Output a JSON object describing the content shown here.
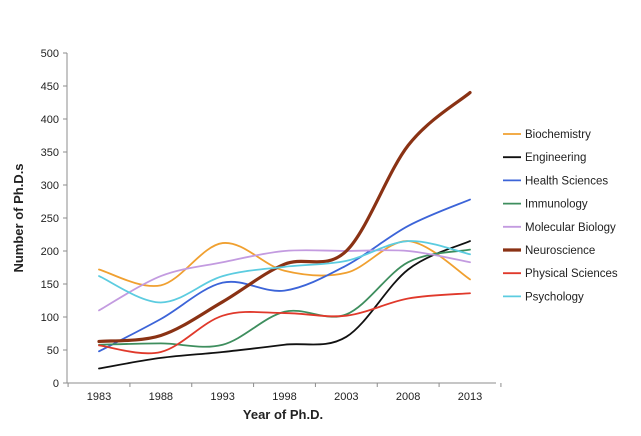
{
  "chart_data": {
    "type": "line",
    "title": "",
    "xlabel": "Year of Ph.D.",
    "ylabel": "Number of Ph.D.s",
    "x": [
      1983,
      1988,
      1993,
      1998,
      2003,
      2008,
      2013
    ],
    "ylim": [
      0,
      500
    ],
    "yticks": [
      0,
      50,
      100,
      150,
      200,
      250,
      300,
      350,
      400,
      450,
      500
    ],
    "grid": false,
    "legend_position": "right",
    "series": [
      {
        "name": "Biochemistry",
        "color": "#F0A030",
        "values": [
          172,
          148,
          212,
          170,
          167,
          215,
          157
        ]
      },
      {
        "name": "Engineering",
        "color": "#111111",
        "values": [
          22,
          38,
          47,
          58,
          70,
          172,
          215
        ]
      },
      {
        "name": "Health Sciences",
        "color": "#3C64D8",
        "values": [
          48,
          97,
          152,
          140,
          178,
          238,
          278
        ]
      },
      {
        "name": "Immunology",
        "color": "#3E8E5E",
        "values": [
          58,
          60,
          58,
          108,
          104,
          183,
          202
        ]
      },
      {
        "name": "Molecular Biology",
        "color": "#C39BE0",
        "values": [
          110,
          162,
          183,
          200,
          200,
          200,
          183
        ]
      },
      {
        "name": "Neuroscience",
        "color": "#8A3214",
        "values": [
          63,
          72,
          123,
          180,
          200,
          360,
          440
        ]
      },
      {
        "name": "Physical Sciences",
        "color": "#E0392B",
        "values": [
          57,
          47,
          102,
          106,
          102,
          128,
          136
        ]
      },
      {
        "name": "Psychology",
        "color": "#5CCCE0",
        "values": [
          162,
          122,
          162,
          176,
          185,
          215,
          195
        ]
      }
    ]
  }
}
